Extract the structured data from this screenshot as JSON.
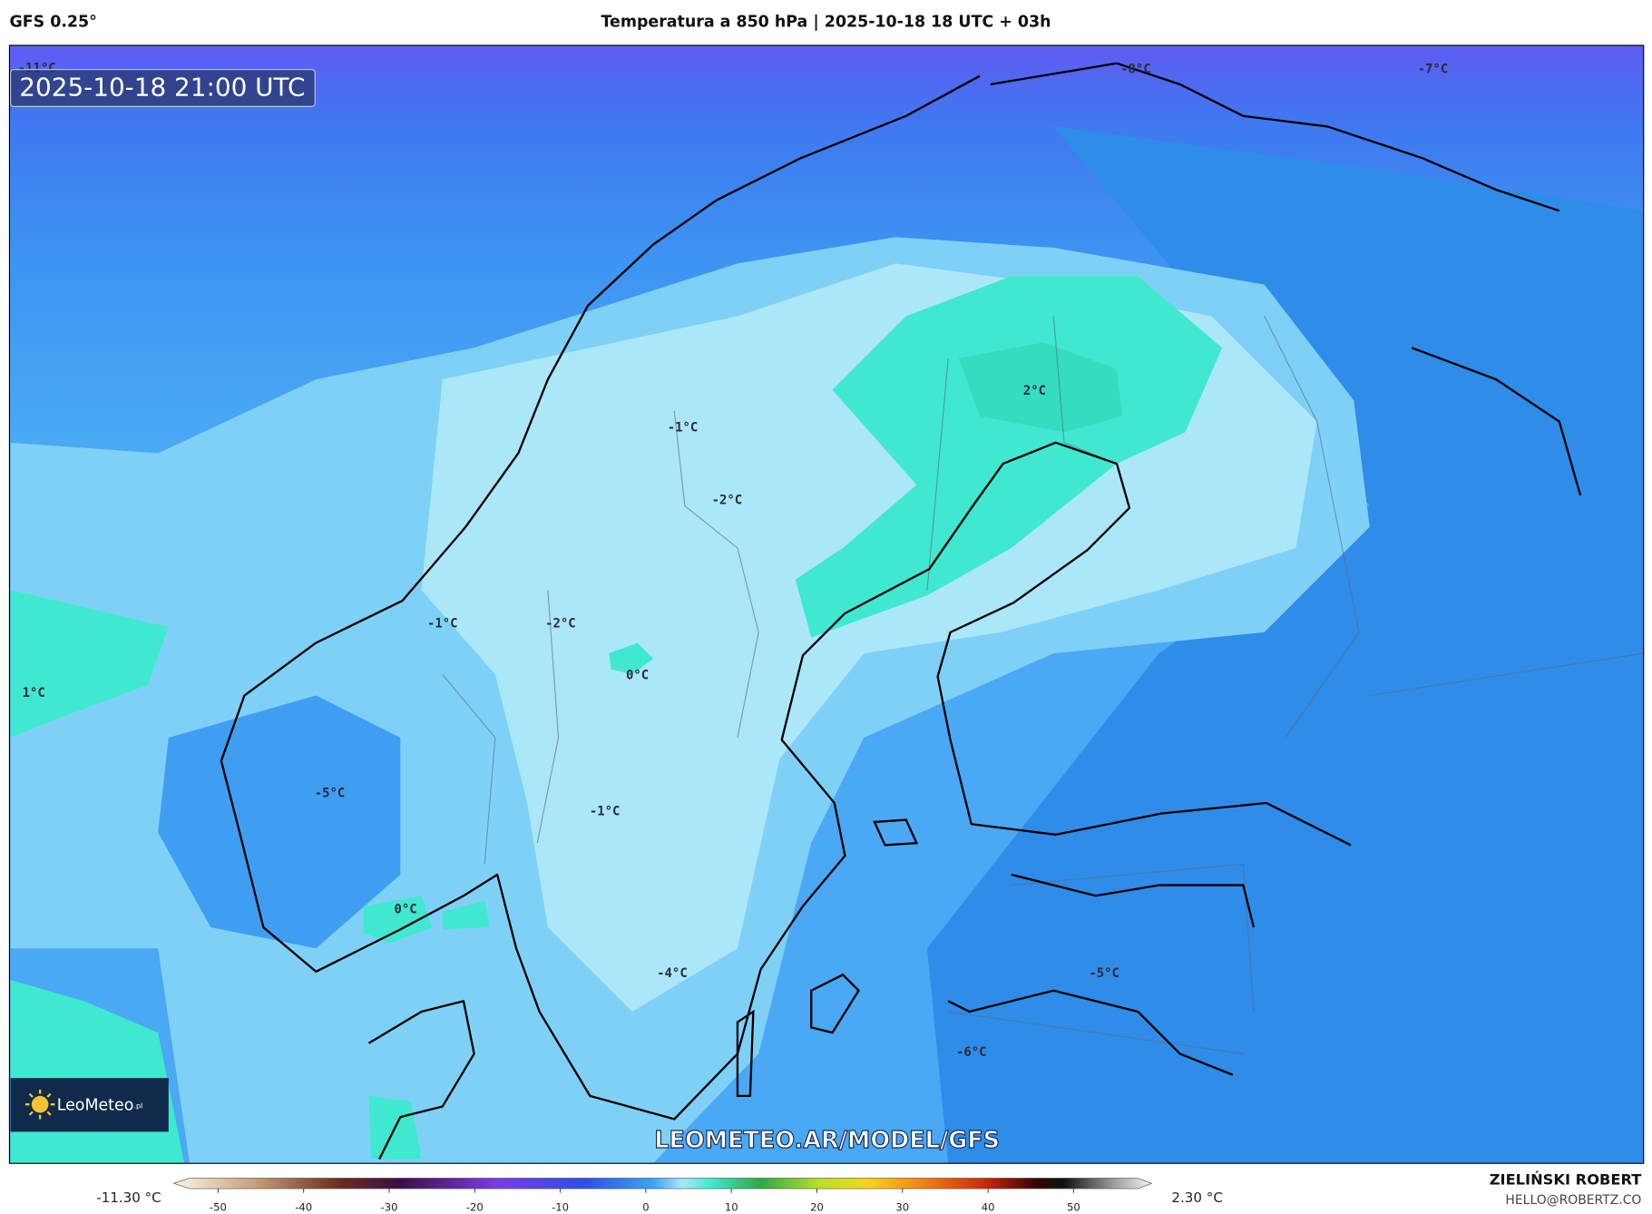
{
  "header": {
    "model": "GFS 0.25°",
    "title": "Temperatura a 850 hPa | 2025-10-18 18 UTC + 03h"
  },
  "map": {
    "timestamp": "2025-10-18 21:00 UTC",
    "contour_labels": [
      "-11°C",
      "-8°C",
      "-7°C",
      "2°C",
      "-1°C",
      "-2°C",
      "-1°C",
      "-2°C",
      "0°C",
      "1°C",
      "-5°C",
      "-1°C",
      "0°C",
      "-4°C",
      "-5°C",
      "-6°C"
    ],
    "watermark": "LEOMETEO.AR/MODEL/GFS",
    "logo": {
      "name": "LeoMeteo",
      "suffix": ".pl"
    }
  },
  "colorbar": {
    "min_label": "-11.30 °C",
    "max_label": "2.30 °C",
    "ticks": [
      -50,
      -40,
      -30,
      -20,
      -10,
      0,
      10,
      20,
      30,
      40,
      50
    ]
  },
  "credits": {
    "author": "ZIELIŃSKI ROBERT",
    "email": "HELLO@ROBERTZ.CO"
  }
}
